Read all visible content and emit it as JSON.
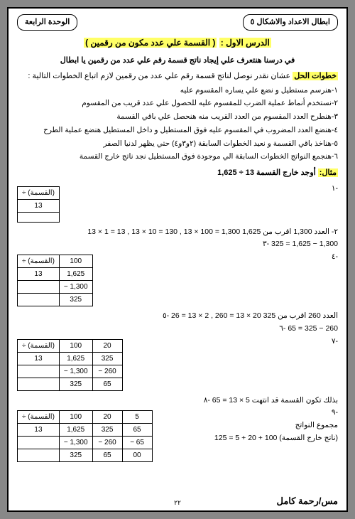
{
  "tabs": {
    "right": "ابطال الاعداد والاشكال ٥",
    "left": "الوحدة الرابعة"
  },
  "lesson": {
    "prefix": "الدرس الاول :",
    "title": "( القسمة علي عدد مكون من رقمين )"
  },
  "intro": "في درسنا هنتعرف علي إيجاد ناتج قسمة رقم علي عدد من رقمين يا ابطال",
  "stepsTitle": {
    "label": "خطوات الحل",
    "rest": " عشان نقدر نوصل لناتج قسمة رقم علي عدد من رقمين لازم اتباع الخطوات التالية :"
  },
  "steps": [
    "١-هنرسم مستطيل و نضع علي يساره المقسوم عليه",
    "٢-نستخدم أنماط عملية الضرب للمقسوم عليه للحصول علي عدد قريب من المقسوم",
    "٣-هنطرح العدد المقسوم من العدد القريب منه هنحصل علي باقي القسمة",
    "٤-هنضع العدد المضروب في المقسوم عليه فوق المستطيل و داخل المستطيل هنضع عملية الطرح",
    "٥-هناخذ باقي القسمة و نعيد الخطوات السابقة (٢و٣و٤) حتي يظهر لدنيا الصفر",
    "٦-هنجمع النواتج الخطوات السابقة الي موجودة فوق المستطيل نجد ناتج خارج القسمة"
  ],
  "example": {
    "label": "مثال:",
    "text": " أوجد خارج القسمة ",
    "expr": "1,625 ÷ 13"
  },
  "w": {
    "l1": "-١",
    "l2_pre": "٢-",
    "l2": "13 × 1 = 13 , 13 × 10 = 130 , 13 × 100 = 1,300 العدد 1,300 اقرب من 1,625",
    "l3": "٣- 325 = 1,625 − 1,300",
    "l4": "-٤",
    "l5": "٥- 26 = 13 × 2 , 260 = 13 × 20 العدد 260 اقرب من 325",
    "l6": "٦- 65 = 325 − 260",
    "l7": "-٧",
    "l8": "٨- 65 = 13 × 5 بذلك تكون القسمة قد انتهت",
    "l9": "-٩",
    "l10_label": "مجموع النواتج",
    "l10": "125 = 5 + 20 + 100 (ناتج خارج القسمة)"
  },
  "tables": {
    "t1": {
      "head": [
        "÷ (القسمة)"
      ],
      "rows": [
        [
          "13"
        ],
        [
          ""
        ]
      ]
    },
    "t2": {
      "head": [
        "÷ (القسمة)",
        "100"
      ],
      "rows": [
        [
          "13",
          "1,625"
        ],
        [
          "",
          "− 1,300"
        ],
        [
          "",
          "325"
        ]
      ]
    },
    "t3": {
      "head": [
        "÷ (القسمة)",
        "100",
        "20"
      ],
      "rows": [
        [
          "13",
          "1,625",
          "325"
        ],
        [
          "",
          "− 1,300",
          "− 260"
        ],
        [
          "",
          "325",
          "65"
        ]
      ]
    },
    "t4": {
      "head": [
        "÷ (القسمة)",
        "100",
        "20",
        "5"
      ],
      "rows": [
        [
          "13",
          "1,625",
          "325",
          "65"
        ],
        [
          "",
          "− 1,300",
          "− 260",
          "− 65"
        ],
        [
          "",
          "325",
          "65",
          "00"
        ]
      ]
    }
  },
  "footer": "مس/رحمة كامل",
  "pagenum": "٢٢"
}
